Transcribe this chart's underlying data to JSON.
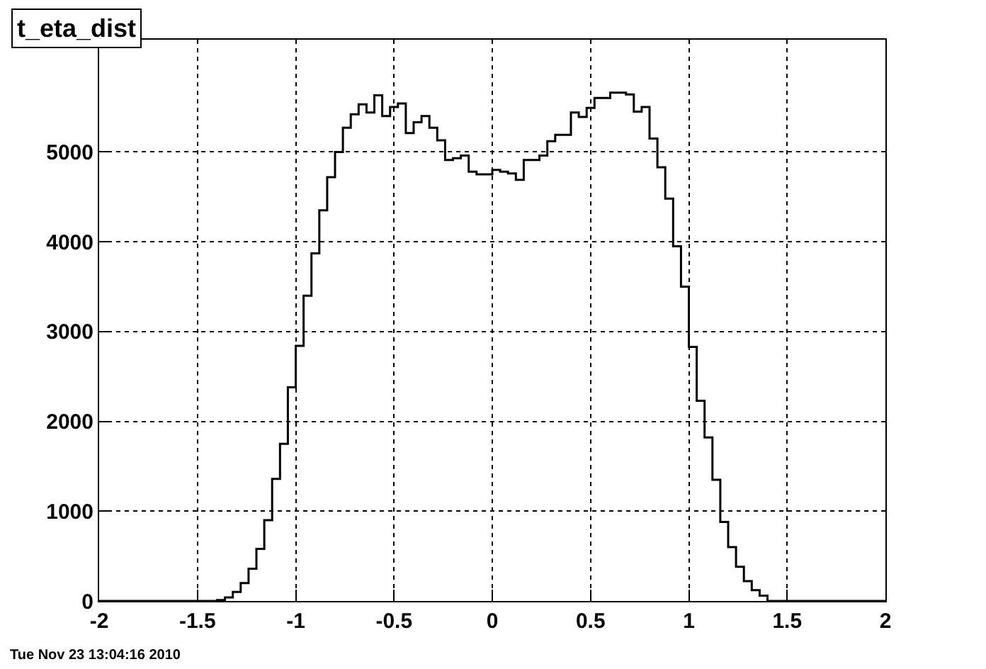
{
  "chart_data": {
    "type": "histogram",
    "title": "t_eta_dist",
    "bins": [
      -2,
      -1.96,
      -1.92,
      -1.88,
      -1.84,
      -1.8,
      -1.76,
      -1.72,
      -1.68,
      -1.64,
      -1.6,
      -1.56,
      -1.52,
      -1.48,
      -1.44,
      -1.4,
      -1.36,
      -1.32,
      -1.28,
      -1.24,
      -1.2,
      -1.16,
      -1.12,
      -1.08,
      -1.04,
      -1,
      -0.96,
      -0.92,
      -0.88,
      -0.84,
      -0.8,
      -0.76,
      -0.72,
      -0.68,
      -0.64,
      -0.6,
      -0.56,
      -0.52,
      -0.48,
      -0.44,
      -0.4,
      -0.36,
      -0.32,
      -0.28,
      -0.24,
      -0.2,
      -0.16,
      -0.12,
      -0.08,
      -0.04,
      0,
      0.04,
      0.08,
      0.12,
      0.16,
      0.2,
      0.24,
      0.28,
      0.32,
      0.36,
      0.4,
      0.44,
      0.48,
      0.52,
      0.56,
      0.6,
      0.64,
      0.68,
      0.72,
      0.76,
      0.8,
      0.84,
      0.88,
      0.92,
      0.96,
      1,
      1.04,
      1.08,
      1.12,
      1.16,
      1.2,
      1.24,
      1.28,
      1.32,
      1.36,
      1.4,
      1.44,
      1.48,
      1.52,
      1.56,
      1.6,
      1.64,
      1.68,
      1.72,
      1.76,
      1.8,
      1.84,
      1.88,
      1.92,
      1.96,
      2
    ],
    "values": [
      0,
      0,
      0,
      0,
      0,
      0,
      0,
      0,
      0,
      0,
      0,
      0,
      0,
      0,
      0,
      10,
      40,
      100,
      200,
      360,
      580,
      900,
      1360,
      1750,
      2380,
      2840,
      3400,
      3870,
      4350,
      4720,
      5000,
      5270,
      5420,
      5530,
      5440,
      5630,
      5400,
      5500,
      5540,
      5210,
      5330,
      5400,
      5270,
      5130,
      4910,
      4930,
      4960,
      4780,
      4750,
      4750,
      4800,
      4780,
      4760,
      4690,
      4910,
      4910,
      4960,
      5120,
      5190,
      5190,
      5440,
      5390,
      5490,
      5600,
      5600,
      5660,
      5660,
      5640,
      5450,
      5500,
      5150,
      4830,
      4480,
      3950,
      3500,
      2830,
      2230,
      1820,
      1350,
      880,
      600,
      380,
      220,
      120,
      60,
      0,
      0,
      0,
      0,
      0,
      0,
      0,
      0,
      0,
      0,
      0,
      0,
      0,
      0,
      0
    ],
    "color": "#000000",
    "xlim": [
      -2,
      2
    ],
    "xticks": [
      -2,
      -1.5,
      -1,
      -0.5,
      0,
      0.5,
      1,
      1.5,
      2
    ],
    "ylim": [
      0,
      6250
    ],
    "yticks": [
      0,
      1000,
      2000,
      3000,
      4000,
      5000
    ],
    "grid": true,
    "annotations": [
      "Tue Nov 23 13:04:16 2010"
    ]
  }
}
